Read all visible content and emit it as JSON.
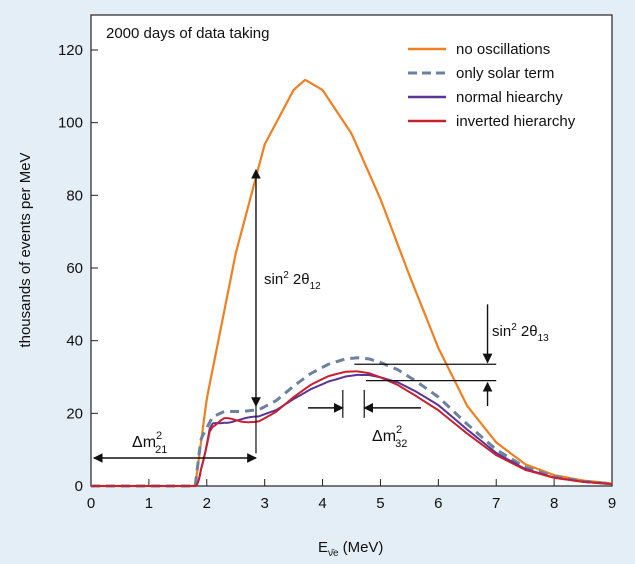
{
  "chart_data": {
    "type": "line",
    "annotation_title": "2000 days of data taking",
    "xlabel_main": "E",
    "xlabel_sub": "ν̄e",
    "xlabel_unit": "(MeV)",
    "ylabel": "thousands of events per MeV",
    "xlim": [
      0,
      9
    ],
    "ylim": [
      0,
      130
    ],
    "x_ticks": [
      "0",
      "1",
      "2",
      "3",
      "4",
      "5",
      "6",
      "7",
      "8",
      "9"
    ],
    "y_ticks": [
      "0",
      "20",
      "40",
      "60",
      "80",
      "100",
      "120"
    ],
    "threshold_mev": 1.8,
    "series": [
      {
        "name": "no oscillations",
        "color": "#f07f22",
        "dash": "",
        "x": [
          1.8,
          2.0,
          2.5,
          3.0,
          3.5,
          3.7,
          4.0,
          4.5,
          5.0,
          5.5,
          6.0,
          6.5,
          7.0,
          7.5,
          8.0,
          8.5,
          9.0
        ],
        "y": [
          0,
          24,
          64,
          94,
          109,
          111.8,
          109,
          97,
          79,
          58,
          38,
          22,
          12,
          6,
          3,
          1.5,
          0.7
        ]
      },
      {
        "name": "only solar term",
        "color": "#6b819e",
        "dash": "9 6",
        "x": [
          1.8,
          1.9,
          2.1,
          2.3,
          2.6,
          2.9,
          3.2,
          3.5,
          3.8,
          4.1,
          4.4,
          4.6,
          4.8,
          5.0,
          5.3,
          5.6,
          6.0,
          6.5,
          7.0,
          7.5,
          8.0,
          8.5,
          9.0
        ],
        "y": [
          0,
          13,
          19,
          20.5,
          20.5,
          21,
          23.5,
          27.5,
          31,
          33.5,
          35,
          35.3,
          35,
          34,
          32,
          29,
          24.5,
          17,
          10,
          5.2,
          2.6,
          1.3,
          0.6
        ]
      },
      {
        "name": "normal hiearchy",
        "color": "#5a3594",
        "dash": "",
        "phase": 0
      },
      {
        "name": "inverted hierarchy",
        "color": "#c8202f",
        "dash": "",
        "phase": 3.1416
      }
    ],
    "annotations": {
      "sin2_12": {
        "text": "sin",
        "sup": "2",
        "tail": " 2θ",
        "sub": "12"
      },
      "sin2_13": {
        "text": "sin",
        "sup": "2",
        "tail": " 2θ",
        "sub": "13"
      },
      "dm21": {
        "text": "Δm",
        "sup": "2",
        "sub": "21"
      },
      "dm32": {
        "text": "Δm",
        "sup": "2",
        "sub": "32"
      }
    }
  }
}
